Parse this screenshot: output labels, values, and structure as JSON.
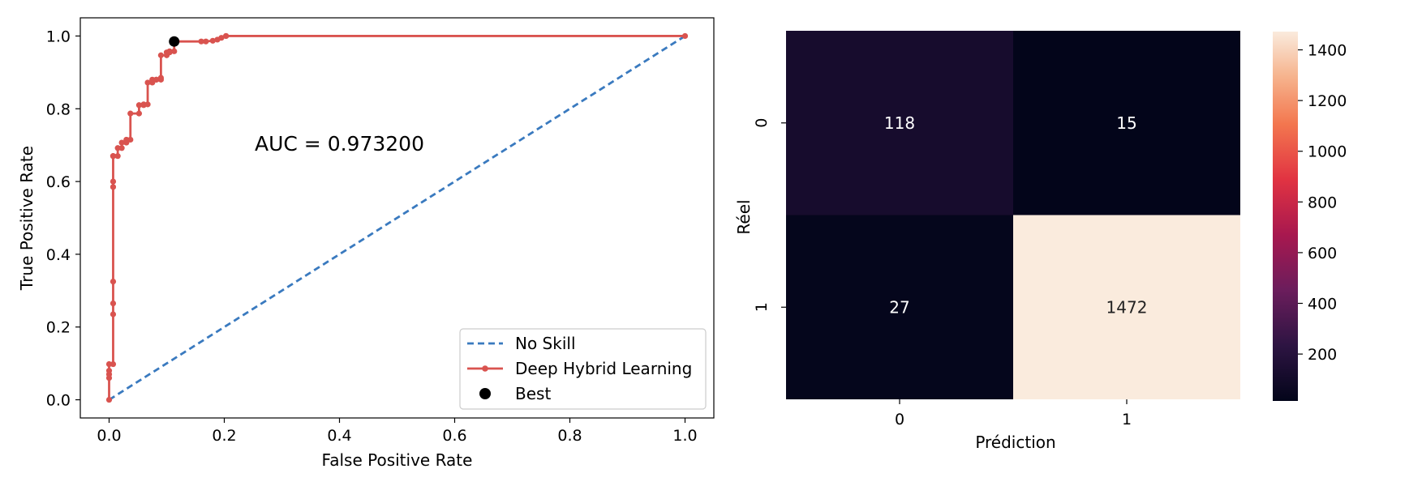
{
  "chart_data": [
    {
      "type": "line",
      "xlabel": "False Positive Rate",
      "ylabel": "True Positive Rate",
      "xlim": [
        -0.05,
        1.05
      ],
      "ylim": [
        -0.05,
        1.05
      ],
      "xticks": [
        "0.0",
        "0.2",
        "0.4",
        "0.6",
        "0.8",
        "1.0"
      ],
      "yticks": [
        "0.0",
        "0.2",
        "0.4",
        "0.6",
        "0.8",
        "1.0"
      ],
      "annotation": "AUC = 0.973200",
      "legend_position": "lower-right",
      "grid": false,
      "series": [
        {
          "name": "No Skill",
          "style": "dashed",
          "color": "#3a7abf",
          "x": [
            0,
            1
          ],
          "y": [
            0,
            1
          ]
        },
        {
          "name": "Deep Hybrid Learning",
          "style": "solid-with-markers",
          "color": "#d9534f",
          "x": [
            0,
            0,
            0,
            0,
            0,
            0.007,
            0.007,
            0.007,
            0.007,
            0.007,
            0.007,
            0.007,
            0.007,
            0.015,
            0.015,
            0.022,
            0.022,
            0.03,
            0.03,
            0.037,
            0.037,
            0.052,
            0.052,
            0.06,
            0.06,
            0.067,
            0.067,
            0.075,
            0.075,
            0.082,
            0.082,
            0.09,
            0.09,
            0.09,
            0.1,
            0.1,
            0.105,
            0.105,
            0.113,
            0.113,
            0.113,
            0.16,
            0.168,
            0.18,
            0.188,
            0.195,
            0.203,
            0.203,
            1
          ],
          "y": [
            0,
            0.06,
            0.07,
            0.08,
            0.098,
            0.098,
            0.235,
            0.265,
            0.325,
            0.585,
            0.6,
            0.67,
            0.67,
            0.67,
            0.692,
            0.692,
            0.707,
            0.707,
            0.715,
            0.715,
            0.787,
            0.787,
            0.81,
            0.81,
            0.812,
            0.812,
            0.872,
            0.872,
            0.88,
            0.88,
            0.88,
            0.88,
            0.885,
            0.947,
            0.947,
            0.955,
            0.955,
            0.958,
            0.958,
            0.985,
            0.985,
            0.985,
            0.985,
            0.987,
            0.99,
            0.995,
            1.0,
            1.0,
            1.0
          ]
        },
        {
          "name": "Best",
          "style": "marker",
          "color": "#000000",
          "x": [
            0.113
          ],
          "y": [
            0.985
          ]
        }
      ]
    },
    {
      "type": "heatmap",
      "xlabel": "Prédiction",
      "ylabel": "Réel",
      "x_categories": [
        "0",
        "1"
      ],
      "y_categories": [
        "0",
        "1"
      ],
      "values": [
        [
          118,
          15
        ],
        [
          27,
          1472
        ]
      ],
      "value_labels": [
        [
          "118",
          "15"
        ],
        [
          "27",
          "1472"
        ]
      ],
      "colorbar": {
        "min": 15,
        "max": 1472,
        "ticks": [
          "200",
          "400",
          "600",
          "800",
          "1000",
          "1200",
          "1400"
        ],
        "tick_values": [
          200,
          400,
          600,
          800,
          1000,
          1200,
          1400
        ]
      },
      "colormap": "rocket"
    }
  ]
}
